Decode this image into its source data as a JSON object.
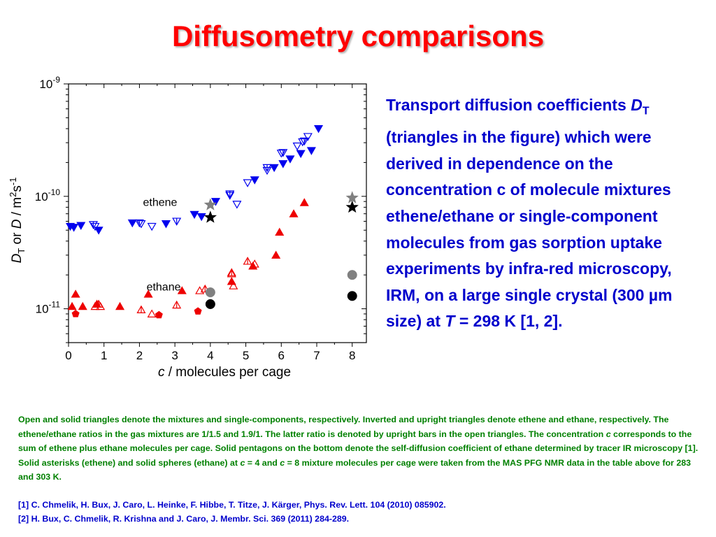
{
  "title": "Diffusometry comparisons",
  "description": {
    "p1": "Transport diffusion coefficients ",
    "d_symbol": "D",
    "d_sub": "T",
    "p2": " (triangles in the figure) which were derived in dependence on the concentration c of molecule mixtures ethene/ethane or single-component molecules from gas sorption uptake experiments by infra-red microscopy, IRM, on a large single crystal (300 µm size) at ",
    "t_symbol": "T",
    "p3": " = 298 K [1, 2]."
  },
  "caption": {
    "p1": "Open and solid triangles denote the mixtures and single-components, respectively. Inverted and upright triangles denote ethene and ethane, respectively. The ethene/ethane ratios in the gas mixtures are 1/1.5 and 1.9/1. The latter ratio is denoted by upright bars in the open triangles. The concentration ",
    "c1": "c",
    "p2": " corresponds to the sum of ethene plus ethane molecules per cage. Solid pentagons on the bottom denote the self-diffusion coefficient of ethane determined by tracer IR microscopy [1]. Solid asterisks (ethene) and solid spheres (ethane) at ",
    "c2": "c",
    "p3": " = 4 and ",
    "c3": "c",
    "p4": " = 8 mixture molecules per cage were taken from the MAS PFG NMR data in the table above for 283 and 303 K."
  },
  "references": [
    "[1]  C. Chmelik, H. Bux, J. Caro, L. Heinke, F. Hibbe, T. Titze, J. Kärger, Phys. Rev. Lett. 104 (2010) 085902.",
    "[2]  H. Bux, C. Chmelik, R. Krishna and J. Caro, J. Membr. Sci. 369 (2011) 284-289."
  ],
  "colors": {
    "title": "#ff0000",
    "description": "#0000cc",
    "caption": "#008000",
    "references": "#0000cc",
    "ethene": "#0000ee",
    "ethane": "#ee0000",
    "nmr_283K": "#808080",
    "nmr_303K": "#000000"
  },
  "chart_data": {
    "type": "scatter",
    "ylog": true,
    "xlim": [
      0,
      8.4
    ],
    "ylim": [
      5e-12,
      1e-09
    ],
    "xticks": [
      "0",
      "1",
      "2",
      "3",
      "4",
      "5",
      "6",
      "7",
      "8"
    ],
    "yticks": [
      {
        "base": "10",
        "exp": "-9",
        "value": 1e-09
      },
      {
        "base": "10",
        "exp": "-10",
        "value": 1e-10
      },
      {
        "base": "10",
        "exp": "-11",
        "value": 1e-11
      }
    ],
    "xlabel": {
      "sym": "c",
      "rest": " / molecules per cage"
    },
    "ylabel": {
      "d1": "D",
      "sub": "T",
      "or": " or ",
      "d2": "D",
      "units": " / m",
      "sup1": "2",
      "s": "s",
      "sup2": "-1"
    },
    "annotations": [
      {
        "text": "ethene",
        "x": 2.1,
        "y": 8.2e-11
      },
      {
        "text": "ethane",
        "x": 2.2,
        "y": 1.45e-11
      }
    ],
    "series": [
      {
        "marker": "tri-down",
        "fill": "solid",
        "color": "ethene",
        "points": [
          [
            0.05,
            5.4e-11
          ],
          [
            0.15,
            5.3e-11
          ],
          [
            0.35,
            5.5e-11
          ],
          [
            0.85,
            5e-11
          ],
          [
            1.8,
            5.8e-11
          ],
          [
            2.75,
            5.7e-11
          ],
          [
            3.55,
            6.9e-11
          ],
          [
            3.75,
            6.6e-11
          ],
          [
            4.15,
            9e-11
          ],
          [
            5.25,
            1.4e-10
          ],
          [
            5.8,
            1.8e-10
          ],
          [
            6.05,
            1.95e-10
          ],
          [
            6.25,
            2.15e-10
          ],
          [
            6.55,
            2.4e-10
          ],
          [
            6.85,
            2.55e-10
          ],
          [
            7.05,
            4e-10
          ]
        ]
      },
      {
        "marker": "tri-down",
        "fill": "open",
        "color": "ethene",
        "points": [
          [
            0.75,
            5.4e-11
          ],
          [
            2.05,
            5.7e-11
          ],
          [
            2.35,
            5.4e-11
          ],
          [
            4.55,
            1.02e-10
          ],
          [
            4.75,
            8.5e-11
          ],
          [
            5.05,
            1.32e-10
          ],
          [
            5.6,
            1.7e-10
          ],
          [
            6.0,
            2.42e-10
          ],
          [
            6.45,
            2.8e-10
          ],
          [
            6.6,
            3.05e-10
          ],
          [
            6.75,
            3.4e-10
          ]
        ]
      },
      {
        "marker": "tri-down",
        "fill": "open-bar",
        "color": "ethene",
        "points": [
          [
            0.7,
            5.6e-11
          ],
          [
            2.0,
            5.8e-11
          ],
          [
            3.05,
            6e-11
          ],
          [
            4.55,
            1.05e-10
          ],
          [
            5.6,
            1.8e-10
          ],
          [
            6.05,
            2.45e-10
          ],
          [
            6.65,
            3.1e-10
          ]
        ]
      },
      {
        "marker": "tri-up",
        "fill": "solid",
        "color": "ethane",
        "points": [
          [
            0.1,
            1.05e-11
          ],
          [
            0.2,
            1.35e-11
          ],
          [
            0.4,
            1.05e-11
          ],
          [
            0.8,
            1.1e-11
          ],
          [
            1.45,
            1.05e-11
          ],
          [
            2.25,
            1.35e-11
          ],
          [
            3.2,
            1.45e-11
          ],
          [
            4.6,
            1.75e-11
          ],
          [
            5.2,
            2.4e-11
          ],
          [
            5.85,
            3e-11
          ],
          [
            5.95,
            4.8e-11
          ],
          [
            6.35,
            7e-11
          ],
          [
            6.65,
            8.8e-11
          ]
        ]
      },
      {
        "marker": "tri-up",
        "fill": "open",
        "color": "ethane",
        "points": [
          [
            0.75,
            1.05e-11
          ],
          [
            0.9,
            1.05e-11
          ],
          [
            2.35,
            9e-12
          ],
          [
            3.7,
            1.45e-11
          ],
          [
            4.6,
            2.05e-11
          ],
          [
            4.65,
            1.6e-11
          ],
          [
            5.25,
            2.5e-11
          ]
        ]
      },
      {
        "marker": "tri-up",
        "fill": "open-bar",
        "color": "ethane",
        "points": [
          [
            0.85,
            1.1e-11
          ],
          [
            2.05,
            9.8e-12
          ],
          [
            3.05,
            1.08e-11
          ],
          [
            3.85,
            1.5e-11
          ],
          [
            4.6,
            2.1e-11
          ],
          [
            5.05,
            2.65e-11
          ]
        ]
      },
      {
        "marker": "pentagon",
        "fill": "solid",
        "color": "ethane",
        "points": [
          [
            0.2,
            9e-12
          ],
          [
            2.55,
            8.8e-12
          ],
          [
            3.65,
            9.5e-12
          ]
        ]
      },
      {
        "marker": "star",
        "fill": "solid",
        "color": "nmr_283K",
        "points": [
          [
            4.0,
            8.4e-11
          ],
          [
            8.0,
            9.7e-11
          ]
        ]
      },
      {
        "marker": "star",
        "fill": "solid",
        "color": "nmr_303K",
        "points": [
          [
            4.0,
            6.5e-11
          ],
          [
            8.0,
            8e-11
          ]
        ]
      },
      {
        "marker": "circle",
        "fill": "solid",
        "color": "nmr_283K",
        "points": [
          [
            4.0,
            1.4e-11
          ],
          [
            8.0,
            2e-11
          ]
        ]
      },
      {
        "marker": "circle",
        "fill": "solid",
        "color": "nmr_303K",
        "points": [
          [
            4.0,
            1.1e-11
          ],
          [
            8.0,
            1.3e-11
          ]
        ]
      }
    ]
  }
}
